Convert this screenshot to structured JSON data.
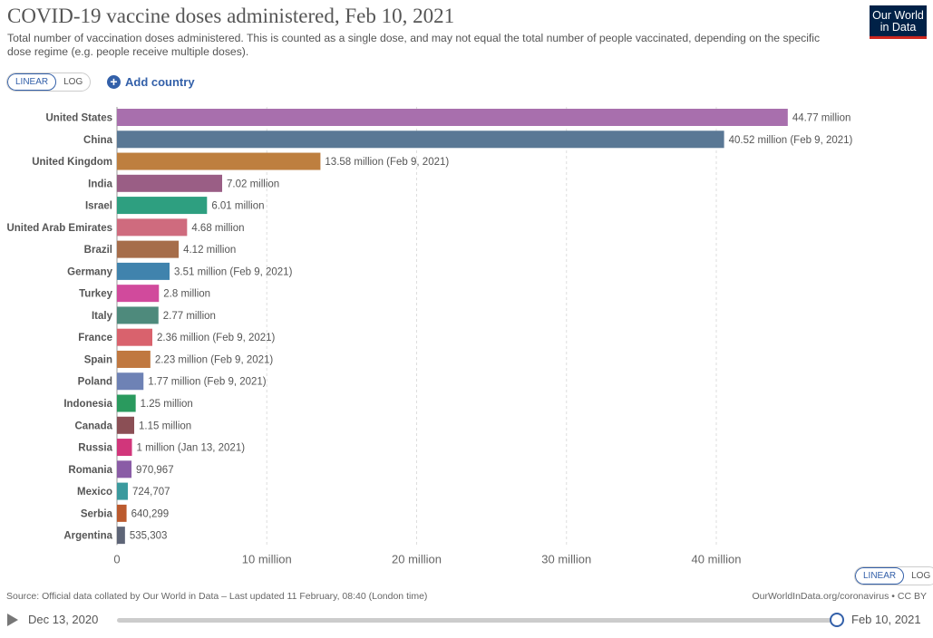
{
  "header": {
    "title": "COVID-19 vaccine doses administered, Feb 10, 2021",
    "subtitle": "Total number of vaccination doses administered. This is counted as a single dose, and may not equal the total number of people vaccinated, depending on the specific dose regime (e.g. people receive multiple doses)."
  },
  "logo": {
    "line1": "Our World",
    "line2": "in Data"
  },
  "controls": {
    "linear_label": "LINEAR",
    "log_label": "LOG",
    "add_country_label": "Add country",
    "active_scale": "linear"
  },
  "footer": {
    "source": "Source: Official data collated by Our World in Data – Last updated 11 February, 08:40 (London time)",
    "link": "OurWorldInData.org/coronavirus • CC BY"
  },
  "timeline": {
    "start": "Dec 13, 2020",
    "end": "Feb 10, 2021",
    "position": 1.0
  },
  "chart_data": {
    "type": "bar",
    "orientation": "horizontal",
    "xlim": [
      0,
      45000000
    ],
    "xticks": [
      0,
      10000000,
      20000000,
      30000000,
      40000000
    ],
    "xtick_labels": [
      "0",
      "10 million",
      "20 million",
      "30 million",
      "40 million"
    ],
    "grid": true,
    "categories": [
      "United States",
      "China",
      "United Kingdom",
      "India",
      "Israel",
      "United Arab Emirates",
      "Brazil",
      "Germany",
      "Turkey",
      "Italy",
      "France",
      "Spain",
      "Poland",
      "Indonesia",
      "Canada",
      "Russia",
      "Romania",
      "Mexico",
      "Serbia",
      "Argentina"
    ],
    "values": [
      44770000,
      40520000,
      13580000,
      7020000,
      6010000,
      4680000,
      4120000,
      3510000,
      2800000,
      2770000,
      2360000,
      2230000,
      1770000,
      1250000,
      1150000,
      1000000,
      970967,
      724707,
      640299,
      535303
    ],
    "labels": [
      "44.77 million",
      "40.52 million (Feb 9, 2021)",
      "13.58 million (Feb 9, 2021)",
      "7.02 million",
      "6.01 million",
      "4.68 million",
      "4.12 million",
      "3.51 million (Feb 9, 2021)",
      "2.8 million",
      "2.77 million",
      "2.36 million (Feb 9, 2021)",
      "2.23 million (Feb 9, 2021)",
      "1.77 million (Feb 9, 2021)",
      "1.25 million",
      "1.15 million",
      "1 million (Jan 13, 2021)",
      "970,967",
      "724,707",
      "640,299",
      "535,303"
    ],
    "colors": [
      "#a86fad",
      "#5a7895",
      "#be7f3f",
      "#9a5e85",
      "#2e9f80",
      "#cf6b7e",
      "#a66d4a",
      "#4083ad",
      "#d14a9c",
      "#4e8a7c",
      "#d9626d",
      "#c07840",
      "#6e82b5",
      "#2a9a5e",
      "#8b4f55",
      "#d1367b",
      "#8a5ca6",
      "#3b9a9e",
      "#bb5a2e",
      "#5e6577"
    ]
  }
}
